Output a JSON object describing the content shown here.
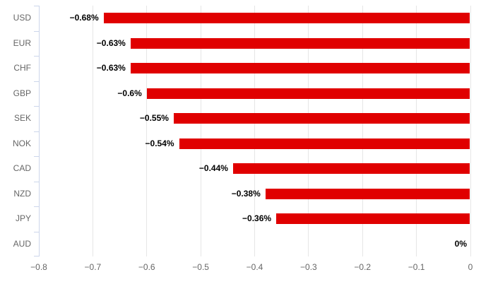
{
  "chart_data": {
    "type": "bar",
    "orientation": "horizontal",
    "title": "",
    "xlabel": "",
    "ylabel": "",
    "grid": "vertical",
    "legend": "none",
    "xlim": [
      -0.8,
      0
    ],
    "categories": [
      "USD",
      "EUR",
      "CHF",
      "GBP",
      "SEK",
      "NOK",
      "CAD",
      "NZD",
      "JPY",
      "AUD"
    ],
    "values": [
      -0.68,
      -0.63,
      -0.63,
      -0.6,
      -0.55,
      -0.54,
      -0.44,
      -0.38,
      -0.36,
      0
    ],
    "data_labels": [
      "−0.68%",
      "−0.63%",
      "−0.63%",
      "−0.6%",
      "−0.55%",
      "−0.54%",
      "−0.44%",
      "−0.38%",
      "−0.36%",
      "0%"
    ],
    "x_tick_values": [
      -0.8,
      -0.7,
      -0.6,
      -0.5,
      -0.4,
      -0.3,
      -0.2,
      -0.1,
      0
    ],
    "x_tick_labels": [
      "−0.8",
      "−0.7",
      "−0.6",
      "−0.5",
      "−0.4",
      "−0.3",
      "−0.2",
      "−0.1",
      "0"
    ],
    "colors": {
      "bar": "#e00000",
      "category_axis_line": "#ccd6eb",
      "gridline": "#e6e6e6",
      "tick_label": "#666666",
      "category_label": "#666666",
      "data_label": "#000000",
      "background": "#ffffff"
    }
  }
}
